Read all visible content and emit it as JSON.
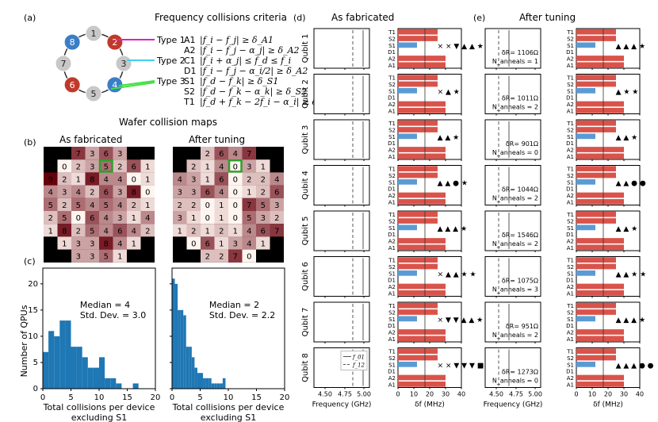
{
  "panel_a": {
    "label": "(a)",
    "title": "Frequency collisions criteria",
    "ring_nodes": [
      "1",
      "2",
      "3",
      "4",
      "5",
      "6",
      "7",
      "8"
    ],
    "criteria": [
      {
        "type": "Type 1",
        "code": "A1",
        "formula": "|f_i − f_j| ≥ δ_A1"
      },
      {
        "type": "",
        "code": "A2",
        "formula": "|f_i − f_j − α_j| ≥ δ_A2"
      },
      {
        "type": "Type 2",
        "code": "C1",
        "formula": "|f_i + α_j| ≤ f_d ≤ f_i"
      },
      {
        "type": "",
        "code": "D1",
        "formula": "|f_i − f_j − α_i/2| ≥ δ_A2"
      },
      {
        "type": "Type 3",
        "code": "S1",
        "formula": "|f_d − f_k| ≥ δ_S1"
      },
      {
        "type": "",
        "code": "S2",
        "formula": "|f_d − f_k − α_k| ≥ δ_S2"
      },
      {
        "type": "",
        "code": "T1",
        "formula": "|f_d + f_k − 2f_i − α_i| ≥ δ_T1"
      }
    ]
  },
  "panel_b": {
    "label": "(b)",
    "section_title": "Wafer collision maps",
    "maps": [
      {
        "title": "As fabricated",
        "rows": [
          [
            "",
            "",
            "7",
            "3",
            "6",
            "3",
            "",
            ""
          ],
          [
            "",
            "0",
            "2",
            "3",
            "5",
            "2",
            "6",
            "1"
          ],
          [
            "9",
            "2",
            "1",
            "8",
            "4",
            "4",
            "0",
            "1"
          ],
          [
            "4",
            "3",
            "4",
            "2",
            "6",
            "3",
            "8",
            "0"
          ],
          [
            "5",
            "2",
            "5",
            "4",
            "5",
            "4",
            "2",
            "1"
          ],
          [
            "2",
            "5",
            "0",
            "6",
            "4",
            "3",
            "1",
            "4"
          ],
          [
            "1",
            "8",
            "2",
            "5",
            "4",
            "6",
            "4",
            "2"
          ],
          [
            "",
            "1",
            "3",
            "3",
            "8",
            "4",
            "1",
            ""
          ],
          [
            "",
            "",
            "3",
            "3",
            "5",
            "1",
            "",
            ""
          ]
        ]
      },
      {
        "title": "After tuning",
        "rows": [
          [
            "",
            "",
            "2",
            "6",
            "4",
            "7",
            "",
            ""
          ],
          [
            "",
            "2",
            "1",
            "4",
            "0",
            "3",
            "1",
            ""
          ],
          [
            "4",
            "3",
            "1",
            "6",
            "0",
            "2",
            "2",
            "4"
          ],
          [
            "3",
            "3",
            "6",
            "4",
            "0",
            "1",
            "2",
            "6"
          ],
          [
            "2",
            "2",
            "0",
            "1",
            "0",
            "7",
            "5",
            "3"
          ],
          [
            "3",
            "1",
            "0",
            "1",
            "0",
            "5",
            "3",
            "2"
          ],
          [
            "1",
            "2",
            "1",
            "2",
            "1",
            "4",
            "6",
            "7"
          ],
          [
            "",
            "0",
            "6",
            "1",
            "3",
            "4",
            "1",
            ""
          ],
          [
            "",
            "",
            "2",
            "2",
            "7",
            "0",
            "",
            ""
          ]
        ]
      }
    ]
  },
  "panel_c": {
    "label": "(c)",
    "ylabel": "Number of QPUs",
    "xlabel_line1": "Total collisions per device",
    "xlabel_line2": "excluding S1",
    "x_ticks": [
      "0",
      "5",
      "10",
      "15",
      "20"
    ],
    "y_ticks": [
      "0",
      "5",
      "10",
      "15",
      "20"
    ]
  },
  "chart_data": [
    {
      "type": "bar",
      "title": "",
      "xlabel": "Total collisions per device excluding S1",
      "ylabel": "Number of QPUs",
      "xlim": [
        0,
        20
      ],
      "ylim": [
        0,
        23
      ],
      "bin_width": 1,
      "x": [
        0,
        1,
        2,
        3,
        4,
        5,
        6,
        7,
        8,
        9,
        10,
        11,
        12,
        13,
        14,
        15,
        16,
        17,
        18,
        19
      ],
      "values": [
        7,
        11,
        10,
        13,
        13,
        8,
        8,
        6,
        4,
        4,
        6,
        2,
        2,
        1,
        0,
        0,
        1,
        0,
        0,
        0
      ],
      "annotation": [
        "Median = 4",
        "Std. Dev. = 3.0"
      ]
    },
    {
      "type": "bar",
      "title": "",
      "xlabel": "Total collisions per device excluding S1",
      "ylabel": "",
      "xlim": [
        0,
        20
      ],
      "ylim": [
        0,
        23
      ],
      "bin_width": 0.5,
      "x": [
        0,
        0.5,
        1,
        1.5,
        2,
        2.5,
        3,
        3.5,
        4,
        4.5,
        5,
        5.5,
        6,
        6.5,
        7,
        7.5,
        8,
        8.5,
        9,
        9.5
      ],
      "values": [
        21,
        20,
        15,
        15,
        14,
        8,
        8,
        6,
        4,
        3,
        3,
        2,
        2,
        2,
        1,
        1,
        1,
        1,
        2,
        0
      ],
      "annotation": [
        "Median = 2",
        "Std. Dev. = 2.2"
      ]
    },
    {
      "type": "bar",
      "title": "As fabricated",
      "xlabel": "δf (MHz)",
      "categories": [
        "T1",
        "S2",
        "S1",
        "D1",
        "A2",
        "A1"
      ],
      "x_ticks": [
        0,
        10,
        20,
        30,
        40
      ],
      "qubits": [
        {
          "name": "Qubit 1",
          "red": [
            25,
            25,
            0,
            0,
            30,
            30
          ],
          "blue": [
            0,
            0,
            12,
            0,
            0,
            0
          ],
          "markers": "× × ▼ ▲ ▲ ★"
        },
        {
          "name": "Qubit 2",
          "red": [
            25,
            25,
            0,
            0,
            30,
            30
          ],
          "blue": [
            0,
            0,
            12,
            0,
            0,
            0
          ],
          "markers": "× ▲ ★"
        },
        {
          "name": "Qubit 3",
          "red": [
            25,
            25,
            0,
            0,
            30,
            30
          ],
          "blue": [
            0,
            0,
            12,
            0,
            0,
            0
          ],
          "markers": "▲ ▲ ★"
        },
        {
          "name": "Qubit 4",
          "red": [
            25,
            25,
            0,
            0,
            30,
            30
          ],
          "blue": [
            0,
            0,
            12,
            0,
            0,
            0
          ],
          "markers": "▲ ▲ ● ★"
        },
        {
          "name": "Qubit 5",
          "red": [
            25,
            25,
            0,
            0,
            30,
            30
          ],
          "blue": [
            0,
            0,
            12,
            0,
            0,
            0
          ],
          "markers": "▲ ▲ ▲ ★"
        },
        {
          "name": "Qubit 6",
          "red": [
            25,
            25,
            0,
            0,
            30,
            30
          ],
          "blue": [
            0,
            0,
            12,
            0,
            0,
            0
          ],
          "markers": "× ▲ ▲ ★ ★"
        },
        {
          "name": "Qubit 7",
          "red": [
            25,
            25,
            0,
            0,
            30,
            30
          ],
          "blue": [
            0,
            0,
            12,
            0,
            0,
            0
          ],
          "markers": "× ▼ ▼ ▲ ▲ ★"
        },
        {
          "name": "Qubit 8",
          "red": [
            25,
            25,
            0,
            0,
            30,
            30
          ],
          "blue": [
            0,
            0,
            12,
            0,
            0,
            0
          ],
          "markers": "× × ▼ ▼ ▼ ■"
        }
      ]
    },
    {
      "type": "bar",
      "title": "After tuning",
      "xlabel": "δf (MHz)",
      "categories": [
        "T1",
        "S2",
        "S1",
        "D1",
        "A2",
        "A1"
      ],
      "x_ticks": [
        0,
        10,
        20,
        30,
        40
      ],
      "qubits": [
        {
          "name": "Qubit 1",
          "red": [
            25,
            25,
            0,
            0,
            30,
            30
          ],
          "blue": [
            0,
            0,
            12,
            0,
            0,
            0
          ],
          "markers": "▲ ▲ ▲ ★",
          "dR": "δR= 1106Ω",
          "N": "N_anneals = 1"
        },
        {
          "name": "Qubit 2",
          "red": [
            25,
            25,
            0,
            0,
            30,
            30
          ],
          "blue": [
            0,
            0,
            12,
            0,
            0,
            0
          ],
          "markers": "▲ ★ ★",
          "dR": "δR= 1011Ω",
          "N": "N_anneals = 2"
        },
        {
          "name": "Qubit 3",
          "red": [
            25,
            25,
            0,
            0,
            30,
            30
          ],
          "blue": [
            0,
            0,
            12,
            0,
            0,
            0
          ],
          "markers": "▲ ▲ ★",
          "dR": "δR= 901Ω",
          "N": "N_anneals = 0"
        },
        {
          "name": "Qubit 4",
          "red": [
            25,
            25,
            0,
            0,
            30,
            30
          ],
          "blue": [
            0,
            0,
            12,
            0,
            0,
            0
          ],
          "markers": "▲ ▲ ● ●",
          "dR": "δR= 1044Ω",
          "N": "N_anneals = 2"
        },
        {
          "name": "Qubit 5",
          "red": [
            25,
            25,
            0,
            0,
            30,
            30
          ],
          "blue": [
            0,
            0,
            12,
            0,
            0,
            0
          ],
          "markers": "▲ ▲ ★",
          "dR": "δR= 1546Ω",
          "N": "N_anneals = 2"
        },
        {
          "name": "Qubit 6",
          "red": [
            25,
            25,
            0,
            0,
            30,
            30
          ],
          "blue": [
            0,
            0,
            12,
            0,
            0,
            0
          ],
          "markers": "▲ ▲ ★ ★",
          "dR": "δR= 1075Ω",
          "N": "N_anneals = 3"
        },
        {
          "name": "Qubit 7",
          "red": [
            25,
            25,
            0,
            0,
            30,
            30
          ],
          "blue": [
            0,
            0,
            12,
            0,
            0,
            0
          ],
          "markers": "▲ ▲ ▲ ★",
          "dR": "δR= 951Ω",
          "N": "N_anneals = 2"
        },
        {
          "name": "Qubit 8",
          "red": [
            25,
            25,
            0,
            0,
            30,
            30
          ],
          "blue": [
            0,
            0,
            12,
            0,
            0,
            0
          ],
          "markers": "▲ ▲ ▲ ● ●",
          "dR": "δR= 1273Ω",
          "N": "N_anneals = 0"
        }
      ]
    }
  ],
  "panel_d": {
    "label": "(d)",
    "title": "As fabricated",
    "freq_xlabel": "Frequency (GHz)",
    "freq_ticks": [
      "4.50",
      "4.75",
      "5.00"
    ],
    "df_xlabel": "δf (MHz)",
    "df_ticks": [
      "0",
      "10",
      "20",
      "30",
      "40"
    ],
    "legend": [
      "f_01",
      "f_12"
    ]
  },
  "panel_e": {
    "label": "(e)",
    "title": "After tuning",
    "freq_xlabel": "Frequency (GHz)",
    "freq_ticks": [
      "4.50",
      "4.75",
      "5.00"
    ],
    "df_xlabel": "δf (MHz)",
    "df_ticks": [
      "0",
      "10",
      "20",
      "30",
      "40"
    ]
  },
  "colors": {
    "red": "#d9534a",
    "blue": "#5b9bd5",
    "hist": "#1f77b4",
    "ring_red": "#c0392b",
    "ring_blue": "#3a7ec8",
    "ring_gray": "#c8c8c8",
    "type1": "#e020c0",
    "type2": "#40d0f0",
    "type3": "#40e040"
  }
}
